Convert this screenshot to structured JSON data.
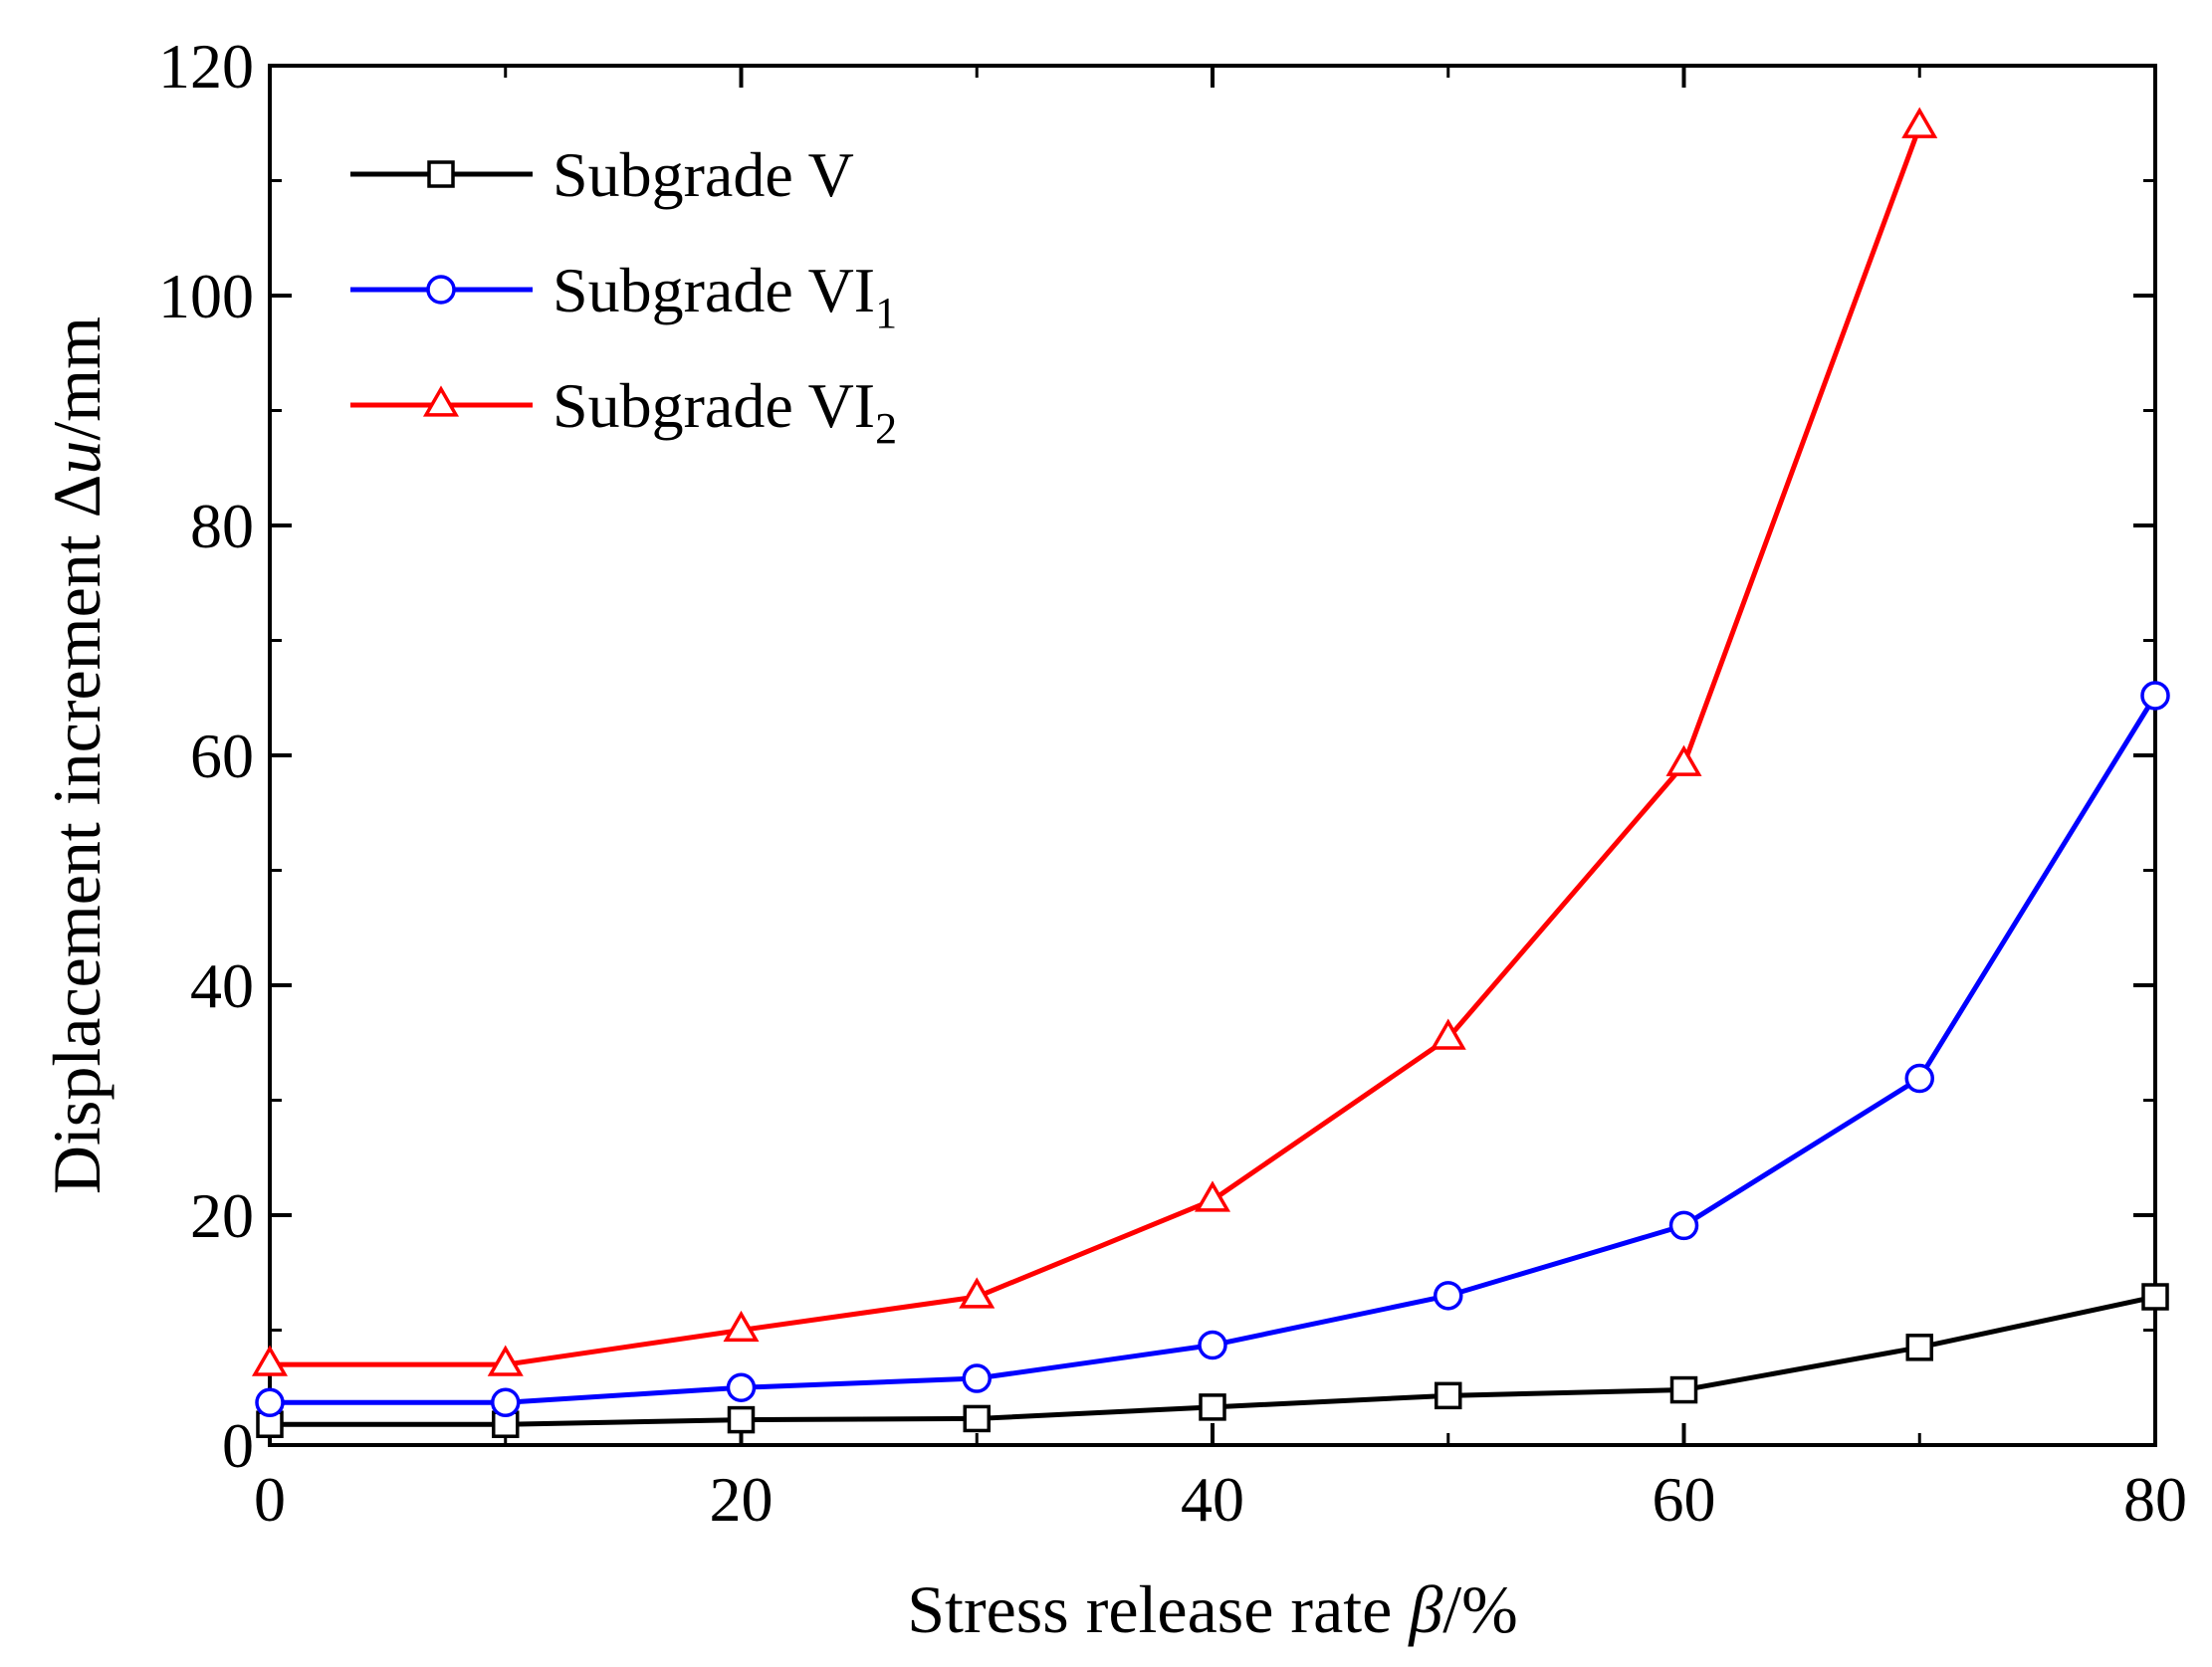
{
  "chart_data": {
    "type": "line",
    "xlabel": {
      "prefix": "Stress release rate ",
      "var": "β",
      "suffix": "/%"
    },
    "ylabel": {
      "prefix": "Displacement increment Δ",
      "var": "u",
      "suffix": "/mm"
    },
    "xlim": [
      0,
      80
    ],
    "ylim": [
      0,
      120
    ],
    "xticks": [
      0,
      20,
      40,
      60,
      80
    ],
    "yticks": [
      0,
      20,
      40,
      60,
      80,
      100,
      120
    ],
    "grid": false,
    "legend_position": "top-left",
    "x": [
      0,
      10,
      20,
      30,
      40,
      50,
      60,
      70,
      80
    ],
    "series": [
      {
        "name": "Subgrade V",
        "label_main": "Subgrade V",
        "label_sub": "",
        "marker": "square",
        "color": "#000000",
        "values": [
          1.8,
          1.8,
          2.2,
          2.3,
          3.3,
          4.3,
          4.8,
          8.5,
          12.9
        ]
      },
      {
        "name": "Subgrade VI1",
        "label_main": "Subgrade VI",
        "label_sub": "1",
        "marker": "circle",
        "color": "#0000ff",
        "values": [
          3.7,
          3.7,
          5.0,
          5.8,
          8.7,
          13.0,
          19.1,
          31.9,
          65.2
        ]
      },
      {
        "name": "Subgrade VI2",
        "label_main": "Subgrade VI",
        "label_sub": "2",
        "marker": "triangle",
        "color": "#ff0000",
        "values": [
          7.0,
          7.0,
          10.0,
          12.9,
          21.3,
          35.4,
          59.2,
          114.7,
          null
        ]
      }
    ]
  }
}
